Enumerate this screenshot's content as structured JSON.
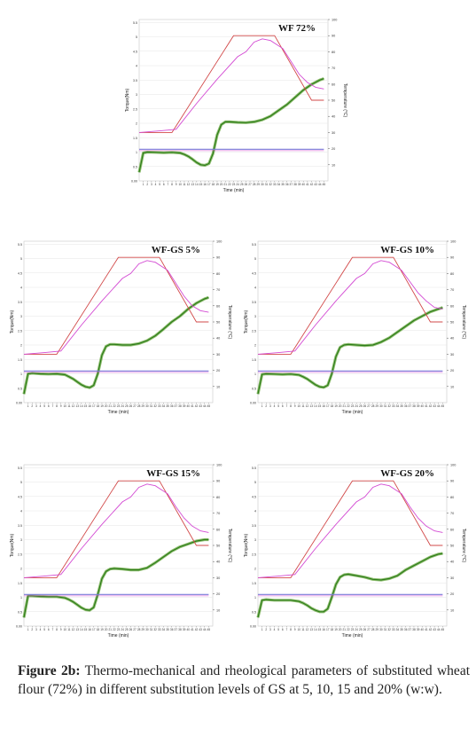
{
  "caption": {
    "label": "Figure 2b:",
    "text": " Thermo-mechanical and rheological parameters of substituted wheat flour (72%) in different substitution levels of GS at 5, 10, 15 and 20% (w:w)."
  },
  "colors": {
    "torque": "#2e7d1a",
    "torque_fill": "#6aa840",
    "temperature_setpoint": "#d24a4a",
    "temperature_dough": "#d34ad3",
    "reference": "#7a7ad8",
    "grid": "#e6e6e6"
  },
  "chart_data": [
    {
      "type": "line",
      "title": "WF 72%",
      "xlabel": "Time (min)",
      "ylabel": "Torque(Nm)",
      "y2label": "Temperature (°C)",
      "x_ticks": [
        1,
        2,
        3,
        4,
        5,
        6,
        7,
        8,
        9,
        10,
        11,
        12,
        13,
        14,
        15,
        16,
        17,
        18,
        19,
        20,
        21,
        22,
        23,
        24,
        25,
        26,
        27,
        28,
        29,
        30,
        31,
        32,
        33,
        34,
        35,
        36,
        37,
        38,
        39,
        40,
        41,
        42,
        43,
        44,
        45
      ],
      "y_ticks": [
        "0.00",
        "0.5",
        "1",
        "1.5",
        "2",
        "2.5",
        "3",
        "3.5",
        "4",
        "4.5",
        "5",
        "5.5"
      ],
      "y2_ticks": [
        "10",
        "20",
        "30",
        "40",
        "50",
        "60",
        "70",
        "80",
        "90",
        "100"
      ],
      "xlim": [
        0,
        46
      ],
      "ylim": [
        0,
        5.6
      ],
      "y2lim": [
        0,
        100
      ],
      "series": [
        {
          "key": "torque",
          "x": [
            0,
            1,
            2,
            4,
            6,
            8,
            10,
            11,
            12,
            13,
            14,
            15,
            16,
            17,
            18,
            19,
            20,
            21,
            22,
            24,
            26,
            28,
            30,
            32,
            34,
            36,
            38,
            40,
            42,
            44,
            45
          ],
          "y": [
            0.3,
            0.97,
            1.0,
            0.99,
            0.98,
            0.99,
            0.97,
            0.92,
            0.85,
            0.75,
            0.64,
            0.56,
            0.54,
            0.6,
            0.95,
            1.6,
            1.95,
            2.05,
            2.05,
            2.03,
            2.02,
            2.05,
            2.12,
            2.25,
            2.45,
            2.65,
            2.9,
            3.15,
            3.35,
            3.5,
            3.55
          ]
        },
        {
          "key": "temperature_setpoint",
          "x": [
            0,
            8,
            23,
            33,
            42,
            45
          ],
          "y": [
            30,
            30,
            90,
            90,
            50,
            50
          ]
        },
        {
          "key": "temperature_dough",
          "x": [
            0,
            5,
            9,
            14,
            19,
            24,
            26,
            28,
            30,
            32,
            35,
            37,
            39,
            41,
            43,
            45
          ],
          "y": [
            30,
            31,
            32,
            48,
            63,
            77,
            80,
            86,
            88,
            87,
            82,
            74,
            66,
            61,
            58,
            57
          ]
        },
        {
          "key": "reference",
          "x": [
            0,
            45
          ],
          "y": [
            1.1,
            1.1
          ]
        }
      ]
    },
    {
      "type": "line",
      "title": "WF-GS 5%",
      "xlabel": "Time (min)",
      "ylabel": "Torque(Nm)",
      "y2label": "Temperature (°C)",
      "x_ticks": [
        1,
        2,
        3,
        4,
        5,
        6,
        7,
        8,
        9,
        10,
        11,
        12,
        13,
        14,
        15,
        16,
        17,
        18,
        19,
        20,
        21,
        22,
        23,
        24,
        25,
        26,
        27,
        28,
        29,
        30,
        31,
        32,
        33,
        34,
        35,
        36,
        37,
        38,
        39,
        40,
        41,
        42,
        43,
        44,
        45
      ],
      "y_ticks": [
        "0.00",
        "0.5",
        "1",
        "1.5",
        "2",
        "2.5",
        "3",
        "3.5",
        "4",
        "4.5",
        "5",
        "5.5"
      ],
      "y2_ticks": [
        "10",
        "20",
        "30",
        "40",
        "50",
        "60",
        "70",
        "80",
        "90",
        "100"
      ],
      "xlim": [
        0,
        46
      ],
      "ylim": [
        0,
        5.6
      ],
      "y2lim": [
        0,
        100
      ],
      "series": [
        {
          "key": "torque",
          "x": [
            0,
            1,
            2,
            4,
            6,
            8,
            10,
            11,
            12,
            13,
            14,
            15,
            16,
            17,
            18,
            19,
            20,
            21,
            22,
            24,
            26,
            28,
            30,
            32,
            34,
            36,
            38,
            40,
            42,
            44,
            45
          ],
          "y": [
            0.3,
            1.0,
            1.02,
            1.0,
            0.99,
            1.0,
            0.97,
            0.9,
            0.82,
            0.72,
            0.62,
            0.55,
            0.52,
            0.6,
            1.0,
            1.65,
            1.95,
            2.02,
            2.02,
            2.0,
            2.0,
            2.05,
            2.15,
            2.32,
            2.55,
            2.8,
            3.0,
            3.25,
            3.45,
            3.6,
            3.65
          ]
        },
        {
          "key": "temperature_setpoint",
          "x": [
            0,
            8,
            23,
            33,
            42,
            45
          ],
          "y": [
            30,
            30,
            90,
            90,
            50,
            50
          ]
        },
        {
          "key": "temperature_dough",
          "x": [
            0,
            5,
            9,
            14,
            19,
            24,
            26,
            28,
            30,
            32,
            35,
            37,
            39,
            41,
            43,
            45
          ],
          "y": [
            30,
            31,
            32,
            48,
            63,
            77,
            80,
            86,
            88,
            87,
            82,
            74,
            66,
            60,
            57,
            56
          ]
        },
        {
          "key": "reference",
          "x": [
            0,
            45
          ],
          "y": [
            1.1,
            1.1
          ]
        }
      ]
    },
    {
      "type": "line",
      "title": "WF-GS 10%",
      "xlabel": "Time (min)",
      "ylabel": "Torque(Nm)",
      "y2label": "Temperature (°C)",
      "x_ticks": [
        1,
        2,
        3,
        4,
        5,
        6,
        7,
        8,
        9,
        10,
        11,
        12,
        13,
        14,
        15,
        16,
        17,
        18,
        19,
        20,
        21,
        22,
        23,
        24,
        25,
        26,
        27,
        28,
        29,
        30,
        31,
        32,
        33,
        34,
        35,
        36,
        37,
        38,
        39,
        40,
        41,
        42,
        43,
        44,
        45
      ],
      "y_ticks": [
        "0.00",
        "0.5",
        "1",
        "1.5",
        "2",
        "2.5",
        "3",
        "3.5",
        "4",
        "4.5",
        "5",
        "5.5"
      ],
      "y2_ticks": [
        "10",
        "20",
        "30",
        "40",
        "50",
        "60",
        "70",
        "80",
        "90",
        "100"
      ],
      "xlim": [
        0,
        46
      ],
      "ylim": [
        0,
        5.6
      ],
      "y2lim": [
        0,
        100
      ],
      "series": [
        {
          "key": "torque",
          "x": [
            0,
            1,
            2,
            4,
            6,
            8,
            10,
            11,
            12,
            13,
            14,
            15,
            16,
            17,
            18,
            19,
            20,
            21,
            22,
            24,
            26,
            28,
            30,
            32,
            34,
            36,
            38,
            40,
            42,
            44,
            45
          ],
          "y": [
            0.3,
            0.98,
            1.0,
            0.99,
            0.98,
            0.99,
            0.96,
            0.9,
            0.82,
            0.72,
            0.62,
            0.55,
            0.53,
            0.6,
            1.0,
            1.6,
            1.92,
            2.0,
            2.02,
            2.0,
            1.98,
            2.0,
            2.1,
            2.25,
            2.45,
            2.65,
            2.85,
            3.0,
            3.15,
            3.25,
            3.3
          ]
        },
        {
          "key": "temperature_setpoint",
          "x": [
            0,
            8,
            23,
            33,
            42,
            45
          ],
          "y": [
            30,
            30,
            90,
            90,
            50,
            50
          ]
        },
        {
          "key": "temperature_dough",
          "x": [
            0,
            5,
            9,
            14,
            19,
            24,
            26,
            28,
            30,
            32,
            35,
            37,
            39,
            41,
            43,
            45
          ],
          "y": [
            30,
            31,
            32,
            48,
            63,
            77,
            80,
            86,
            88,
            87,
            82,
            75,
            68,
            63,
            59,
            58
          ]
        },
        {
          "key": "reference",
          "x": [
            0,
            45
          ],
          "y": [
            1.1,
            1.1
          ]
        }
      ]
    },
    {
      "type": "line",
      "title": "WF-GS 15%",
      "xlabel": "Time (min)",
      "ylabel": "Torque(Nm)",
      "y2label": "Temperature (°C)",
      "x_ticks": [
        1,
        2,
        3,
        4,
        5,
        6,
        7,
        8,
        9,
        10,
        11,
        12,
        13,
        14,
        15,
        16,
        17,
        18,
        19,
        20,
        21,
        22,
        23,
        24,
        25,
        26,
        27,
        28,
        29,
        30,
        31,
        32,
        33,
        34,
        35,
        36,
        37,
        38,
        39,
        40,
        41,
        42,
        43,
        44,
        45
      ],
      "y_ticks": [
        "0.00",
        "0.5",
        "1",
        "1.5",
        "2",
        "2.5",
        "3",
        "3.5",
        "4",
        "4.5",
        "5",
        "5.5"
      ],
      "y2_ticks": [
        "10",
        "20",
        "30",
        "40",
        "50",
        "60",
        "70",
        "80",
        "90",
        "100"
      ],
      "xlim": [
        0,
        46
      ],
      "ylim": [
        0,
        5.6
      ],
      "y2lim": [
        0,
        100
      ],
      "series": [
        {
          "key": "torque",
          "x": [
            0,
            1,
            2,
            4,
            6,
            8,
            10,
            11,
            12,
            13,
            14,
            15,
            16,
            17,
            18,
            19,
            20,
            21,
            22,
            24,
            26,
            28,
            30,
            32,
            34,
            36,
            38,
            40,
            42,
            44,
            45
          ],
          "y": [
            0.3,
            1.05,
            1.05,
            1.03,
            1.02,
            1.02,
            0.98,
            0.92,
            0.84,
            0.74,
            0.64,
            0.57,
            0.55,
            0.65,
            1.1,
            1.65,
            1.9,
            1.98,
            2.0,
            1.98,
            1.95,
            1.95,
            2.02,
            2.2,
            2.4,
            2.6,
            2.75,
            2.85,
            2.95,
            3.0,
            3.0
          ]
        },
        {
          "key": "temperature_setpoint",
          "x": [
            0,
            8,
            23,
            33,
            42,
            45
          ],
          "y": [
            30,
            30,
            90,
            90,
            50,
            50
          ]
        },
        {
          "key": "temperature_dough",
          "x": [
            0,
            5,
            9,
            14,
            19,
            24,
            26,
            28,
            30,
            32,
            35,
            37,
            39,
            41,
            43,
            45
          ],
          "y": [
            30,
            31,
            32,
            48,
            63,
            77,
            80,
            86,
            88,
            87,
            82,
            74,
            67,
            62,
            59,
            58
          ]
        },
        {
          "key": "reference",
          "x": [
            0,
            45
          ],
          "y": [
            1.1,
            1.1
          ]
        }
      ]
    },
    {
      "type": "line",
      "title": "WF-GS 20%",
      "xlabel": "Time (min)",
      "ylabel": "Torque(Nm)",
      "y2label": "Temperature (°C)",
      "x_ticks": [
        1,
        2,
        3,
        4,
        5,
        6,
        7,
        8,
        9,
        10,
        11,
        12,
        13,
        14,
        15,
        16,
        17,
        18,
        19,
        20,
        21,
        22,
        23,
        24,
        25,
        26,
        27,
        28,
        29,
        30,
        31,
        32,
        33,
        34,
        35,
        36,
        37,
        38,
        39,
        40,
        41,
        42,
        43,
        44,
        45
      ],
      "y_ticks": [
        "0.00",
        "0.5",
        "1",
        "1.5",
        "2",
        "2.5",
        "3",
        "3.5",
        "4",
        "4.5",
        "5",
        "5.5"
      ],
      "y2_ticks": [
        "10",
        "20",
        "30",
        "40",
        "50",
        "60",
        "70",
        "80",
        "90",
        "100"
      ],
      "xlim": [
        0,
        46
      ],
      "ylim": [
        0,
        5.6
      ],
      "y2lim": [
        0,
        100
      ],
      "series": [
        {
          "key": "torque",
          "x": [
            0,
            1,
            2,
            4,
            6,
            8,
            10,
            11,
            12,
            13,
            14,
            15,
            16,
            17,
            18,
            19,
            20,
            21,
            22,
            24,
            26,
            28,
            30,
            32,
            34,
            36,
            38,
            40,
            42,
            44,
            45
          ],
          "y": [
            0.3,
            0.9,
            0.92,
            0.9,
            0.9,
            0.9,
            0.86,
            0.8,
            0.72,
            0.62,
            0.55,
            0.5,
            0.5,
            0.6,
            1.0,
            1.45,
            1.7,
            1.78,
            1.8,
            1.75,
            1.7,
            1.62,
            1.6,
            1.65,
            1.75,
            1.95,
            2.1,
            2.25,
            2.4,
            2.5,
            2.52
          ]
        },
        {
          "key": "temperature_setpoint",
          "x": [
            0,
            8,
            23,
            33,
            42,
            45
          ],
          "y": [
            30,
            30,
            90,
            90,
            50,
            50
          ]
        },
        {
          "key": "temperature_dough",
          "x": [
            0,
            5,
            9,
            14,
            19,
            24,
            26,
            28,
            30,
            32,
            35,
            37,
            39,
            41,
            43,
            45
          ],
          "y": [
            30,
            31,
            32,
            48,
            63,
            77,
            80,
            86,
            88,
            87,
            82,
            74,
            67,
            62,
            59,
            58
          ]
        },
        {
          "key": "reference",
          "x": [
            0,
            45
          ],
          "y": [
            1.1,
            1.1
          ]
        }
      ]
    }
  ]
}
